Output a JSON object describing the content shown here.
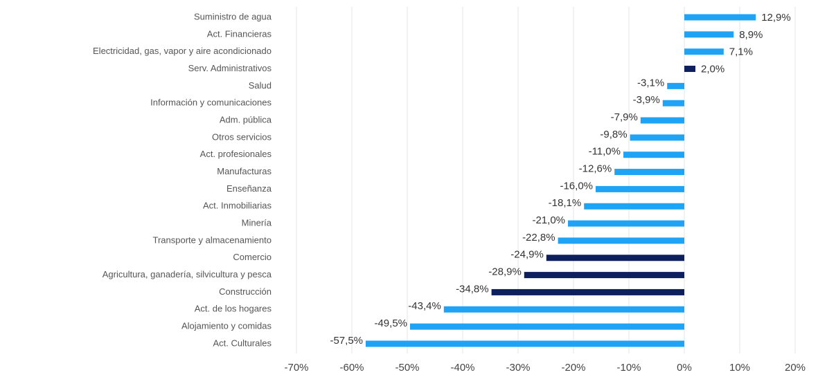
{
  "chart_data": {
    "type": "bar",
    "orientation": "horizontal",
    "categories": [
      "Suministro de agua",
      "Act. Financieras",
      "Electricidad, gas, vapor y aire acondicionado",
      "Serv. Administrativos",
      "Salud",
      "Información y comunicaciones",
      "Adm. pública",
      "Otros servicios",
      "Act. profesionales",
      "Manufacturas",
      "Enseñanza",
      "Act. Inmobiliarias",
      "Minería",
      "Transporte y almacenamiento",
      "Comercio",
      "Agricultura, ganadería, silvicultura y pesca",
      "Construcción",
      "Act. de los hogares",
      "Alojamiento y comidas",
      "Act. Culturales"
    ],
    "values": [
      12.9,
      8.9,
      7.1,
      2.0,
      -3.1,
      -3.9,
      -7.9,
      -9.8,
      -11.0,
      -12.6,
      -16.0,
      -18.1,
      -21.0,
      -22.8,
      -24.9,
      -28.9,
      -34.8,
      -43.4,
      -49.5,
      -57.5
    ],
    "value_labels": [
      "12,9%",
      "8,9%",
      "7,1%",
      "2,0%",
      "-3,1%",
      "-3,9%",
      "-7,9%",
      "-9,8%",
      "-11,0%",
      "-12,6%",
      "-16,0%",
      "-18,1%",
      "-21,0%",
      "-22,8%",
      "-24,9%",
      "-28,9%",
      "-34,8%",
      "-43,4%",
      "-49,5%",
      "-57,5%"
    ],
    "colors": [
      "#1ea3f5",
      "#1ea3f5",
      "#1ea3f5",
      "#0d1f5c",
      "#1ea3f5",
      "#1ea3f5",
      "#1ea3f5",
      "#1ea3f5",
      "#1ea3f5",
      "#1ea3f5",
      "#1ea3f5",
      "#1ea3f5",
      "#1ea3f5",
      "#1ea3f5",
      "#0d1f5c",
      "#0d1f5c",
      "#0d1f5c",
      "#1ea3f5",
      "#1ea3f5",
      "#1ea3f5"
    ],
    "xlim": [
      -70,
      20
    ],
    "xticks": [
      {
        "value": -70,
        "label": "-70%"
      },
      {
        "value": -60,
        "label": "-60%"
      },
      {
        "value": -50,
        "label": "-50%"
      },
      {
        "value": -40,
        "label": "-40%"
      },
      {
        "value": -30,
        "label": "-30%"
      },
      {
        "value": -20,
        "label": "-20%"
      },
      {
        "value": -10,
        "label": "-10%"
      },
      {
        "value": 0,
        "label": "0%"
      },
      {
        "value": 10,
        "label": "10%"
      },
      {
        "value": 20,
        "label": "20%"
      }
    ],
    "grid": true
  }
}
